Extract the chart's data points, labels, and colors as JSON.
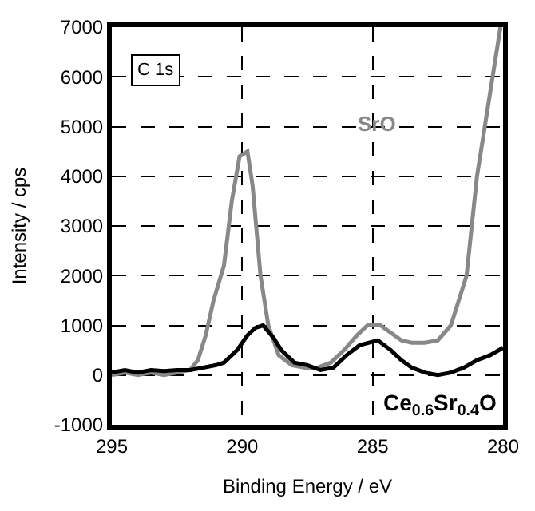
{
  "chart_data": {
    "type": "line",
    "xlabel": "Binding Energy / eV",
    "ylabel": "Intensity / cps",
    "xlim": [
      295,
      280
    ],
    "xticks": [
      295,
      290,
      285,
      280
    ],
    "ylim": [
      -1000,
      7000
    ],
    "yticks": [
      -1000,
      0,
      1000,
      2000,
      3000,
      4000,
      5000,
      6000,
      7000
    ],
    "grid": true,
    "legend": false,
    "line_style": "solid",
    "marker": "none",
    "annotations": [
      "C 1s"
    ],
    "series": [
      {
        "name": "SrO",
        "color": "#888888",
        "x": [
          295,
          294.5,
          294,
          293.5,
          293,
          292.5,
          292,
          291.7,
          291.4,
          291.1,
          290.7,
          290.4,
          290.1,
          289.8,
          289.6,
          289.3,
          289.0,
          288.6,
          288.1,
          287.6,
          287.1,
          286.6,
          286.1,
          285.6,
          285.2,
          284.7,
          284.3,
          283.9,
          283.5,
          283.0,
          282.5,
          282.0,
          281.7,
          281.4,
          281.2,
          281.0,
          280.7,
          280.4,
          280.1
        ],
        "values": [
          0,
          50,
          0,
          50,
          0,
          50,
          100,
          300,
          800,
          1500,
          2200,
          3500,
          4400,
          4500,
          3800,
          2000,
          1000,
          400,
          200,
          150,
          150,
          250,
          500,
          800,
          1000,
          1000,
          850,
          700,
          650,
          650,
          700,
          1000,
          1500,
          2000,
          3000,
          4000,
          5000,
          6000,
          7000
        ]
      },
      {
        "name": "Ce$_{0.6}$Sr$_{0.4}$O",
        "color": "#000000",
        "x": [
          295,
          294.5,
          294,
          293.5,
          293,
          292.5,
          292,
          291.5,
          291,
          290.7,
          290.2,
          289.8,
          289.5,
          289.2,
          288.8,
          288.5,
          288.0,
          287.5,
          287.0,
          286.5,
          286.0,
          285.5,
          284.8,
          284.3,
          283.9,
          283.5,
          283.0,
          282.5,
          282.0,
          281.5,
          281.0,
          280.5,
          280.0
        ],
        "values": [
          50,
          100,
          50,
          100,
          80,
          100,
          100,
          150,
          200,
          250,
          500,
          800,
          950,
          1000,
          750,
          500,
          250,
          200,
          100,
          150,
          400,
          600,
          700,
          500,
          300,
          150,
          50,
          0,
          50,
          150,
          300,
          400,
          550
        ]
      }
    ]
  }
}
